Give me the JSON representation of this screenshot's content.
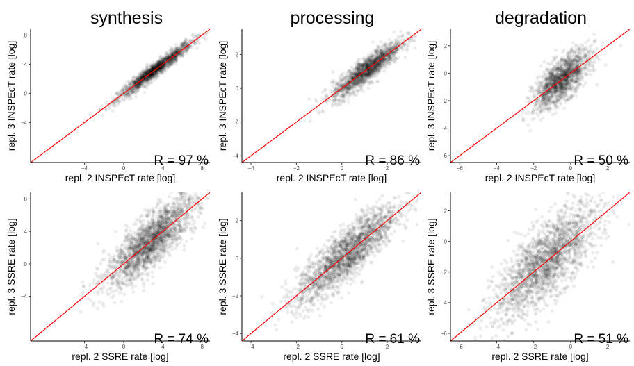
{
  "column_titles": [
    "synthesis",
    "processing",
    "degradation"
  ],
  "chart_data": [
    {
      "type": "scatter",
      "row": 0,
      "col": 0,
      "title": "synthesis",
      "xlabel": "repl. 2 INSPEcT rate [log]",
      "ylabel": "repl. 3 INSPEcT rate [log]",
      "xlim": [
        -9.5,
        8.8
      ],
      "ylim": [
        -9.5,
        8.8
      ],
      "xticks": [
        -4,
        0,
        4,
        8
      ],
      "yticks": [
        -4,
        0,
        4,
        8
      ],
      "xtick_labels": [
        "−4",
        "0",
        "4",
        "8"
      ],
      "ytick_labels": [
        "−4",
        "0",
        "4",
        "8"
      ],
      "annotation": "R = 97 %",
      "correlation_percent": 97,
      "reference_line": "y = x",
      "cloud": {
        "x_mean": 3.2,
        "x_sd": 1.9,
        "y_sd": 0.5,
        "n": 1400
      }
    },
    {
      "type": "scatter",
      "row": 0,
      "col": 1,
      "title": "processing",
      "xlabel": "repl. 2 INSPEcT rate [log]",
      "ylabel": "repl. 3 INSPEcT rate [log]",
      "xlim": [
        -4.4,
        3.5
      ],
      "ylim": [
        -4.4,
        3.5
      ],
      "xticks": [
        -4,
        -2,
        0,
        2
      ],
      "yticks": [
        -4,
        -2,
        0,
        2
      ],
      "xtick_labels": [
        "−4",
        "−2",
        "0",
        "2"
      ],
      "ytick_labels": [
        "−4",
        "−2",
        "0",
        "2"
      ],
      "annotation": "R = 86 %",
      "correlation_percent": 86,
      "reference_line": "y = x",
      "cloud": {
        "x_mean": 1.1,
        "x_sd": 0.75,
        "y_sd": 0.38,
        "n": 1400
      }
    },
    {
      "type": "scatter",
      "row": 0,
      "col": 2,
      "title": "degradation",
      "xlabel": "repl. 2 INSPEcT rate [log]",
      "ylabel": "repl. 3 INSPEcT rate [log]",
      "xlim": [
        -6.5,
        3.2
      ],
      "ylim": [
        -6.5,
        3.2
      ],
      "xticks": [
        -6,
        -4,
        -2,
        0,
        2
      ],
      "yticks": [
        -6,
        -4,
        -2,
        0,
        2
      ],
      "xtick_labels": [
        "−6",
        "−4",
        "−2",
        "0",
        "2"
      ],
      "ytick_labels": [
        "−6",
        "−4",
        "−2",
        "0",
        "2"
      ],
      "annotation": "R = 50 %",
      "correlation_percent": 50,
      "reference_line": "y = x",
      "cloud": {
        "x_mean": -0.5,
        "x_sd": 0.75,
        "y_sd": 0.75,
        "n": 1400
      }
    },
    {
      "type": "scatter",
      "row": 1,
      "col": 0,
      "title": "",
      "xlabel": "repl. 2 SSRE rate [log]",
      "ylabel": "repl. 3 SSRE rate [log]",
      "xlim": [
        -9.5,
        8.8
      ],
      "ylim": [
        -9.5,
        8.8
      ],
      "xticks": [
        -4,
        0,
        4,
        8
      ],
      "yticks": [
        -4,
        0,
        4,
        8
      ],
      "xtick_labels": [
        "−4",
        "0",
        "4",
        "8"
      ],
      "ytick_labels": [
        "−4",
        "0",
        "4",
        "8"
      ],
      "annotation": "R = 74 %",
      "correlation_percent": 74,
      "reference_line": "y = x",
      "cloud": {
        "x_mean": 2.8,
        "x_sd": 2.3,
        "y_sd": 1.6,
        "n": 1900
      }
    },
    {
      "type": "scatter",
      "row": 1,
      "col": 1,
      "title": "",
      "xlabel": "repl. 2 SSRE rate [log]",
      "ylabel": "repl. 3 SSRE rate [log]",
      "xlim": [
        -4.4,
        3.5
      ],
      "ylim": [
        -4.4,
        3.5
      ],
      "xticks": [
        -4,
        -2,
        0,
        2
      ],
      "yticks": [
        -4,
        -2,
        0,
        2
      ],
      "xtick_labels": [
        "−4",
        "−2",
        "0",
        "2"
      ],
      "ytick_labels": [
        "−4",
        "−2",
        "0",
        "2"
      ],
      "annotation": "R = 61 %",
      "correlation_percent": 61,
      "reference_line": "y = x",
      "cloud": {
        "x_mean": 0.2,
        "x_sd": 1.1,
        "y_sd": 0.7,
        "n": 1900
      }
    },
    {
      "type": "scatter",
      "row": 1,
      "col": 2,
      "title": "",
      "xlabel": "repl. 2 SSRE rate [log]",
      "ylabel": "repl. 3 SSRE rate [log]",
      "xlim": [
        -6.5,
        3.2
      ],
      "ylim": [
        -6.5,
        3.2
      ],
      "xticks": [
        -6,
        -4,
        -2,
        0,
        2
      ],
      "yticks": [
        -6,
        -4,
        -2,
        0,
        2
      ],
      "xtick_labels": [
        "−6",
        "−4",
        "−2",
        "0",
        "2"
      ],
      "ytick_labels": [
        "−6",
        "−4",
        "−2",
        "0",
        "2"
      ],
      "annotation": "R = 51 %",
      "correlation_percent": 51,
      "reference_line": "y = x",
      "cloud": {
        "x_mean": -1.3,
        "x_sd": 1.4,
        "y_sd": 1.2,
        "n": 1900
      }
    }
  ],
  "colors": {
    "points": "#000000",
    "reference_line": "#ff0000",
    "tick_text": "#4d4d4d"
  }
}
